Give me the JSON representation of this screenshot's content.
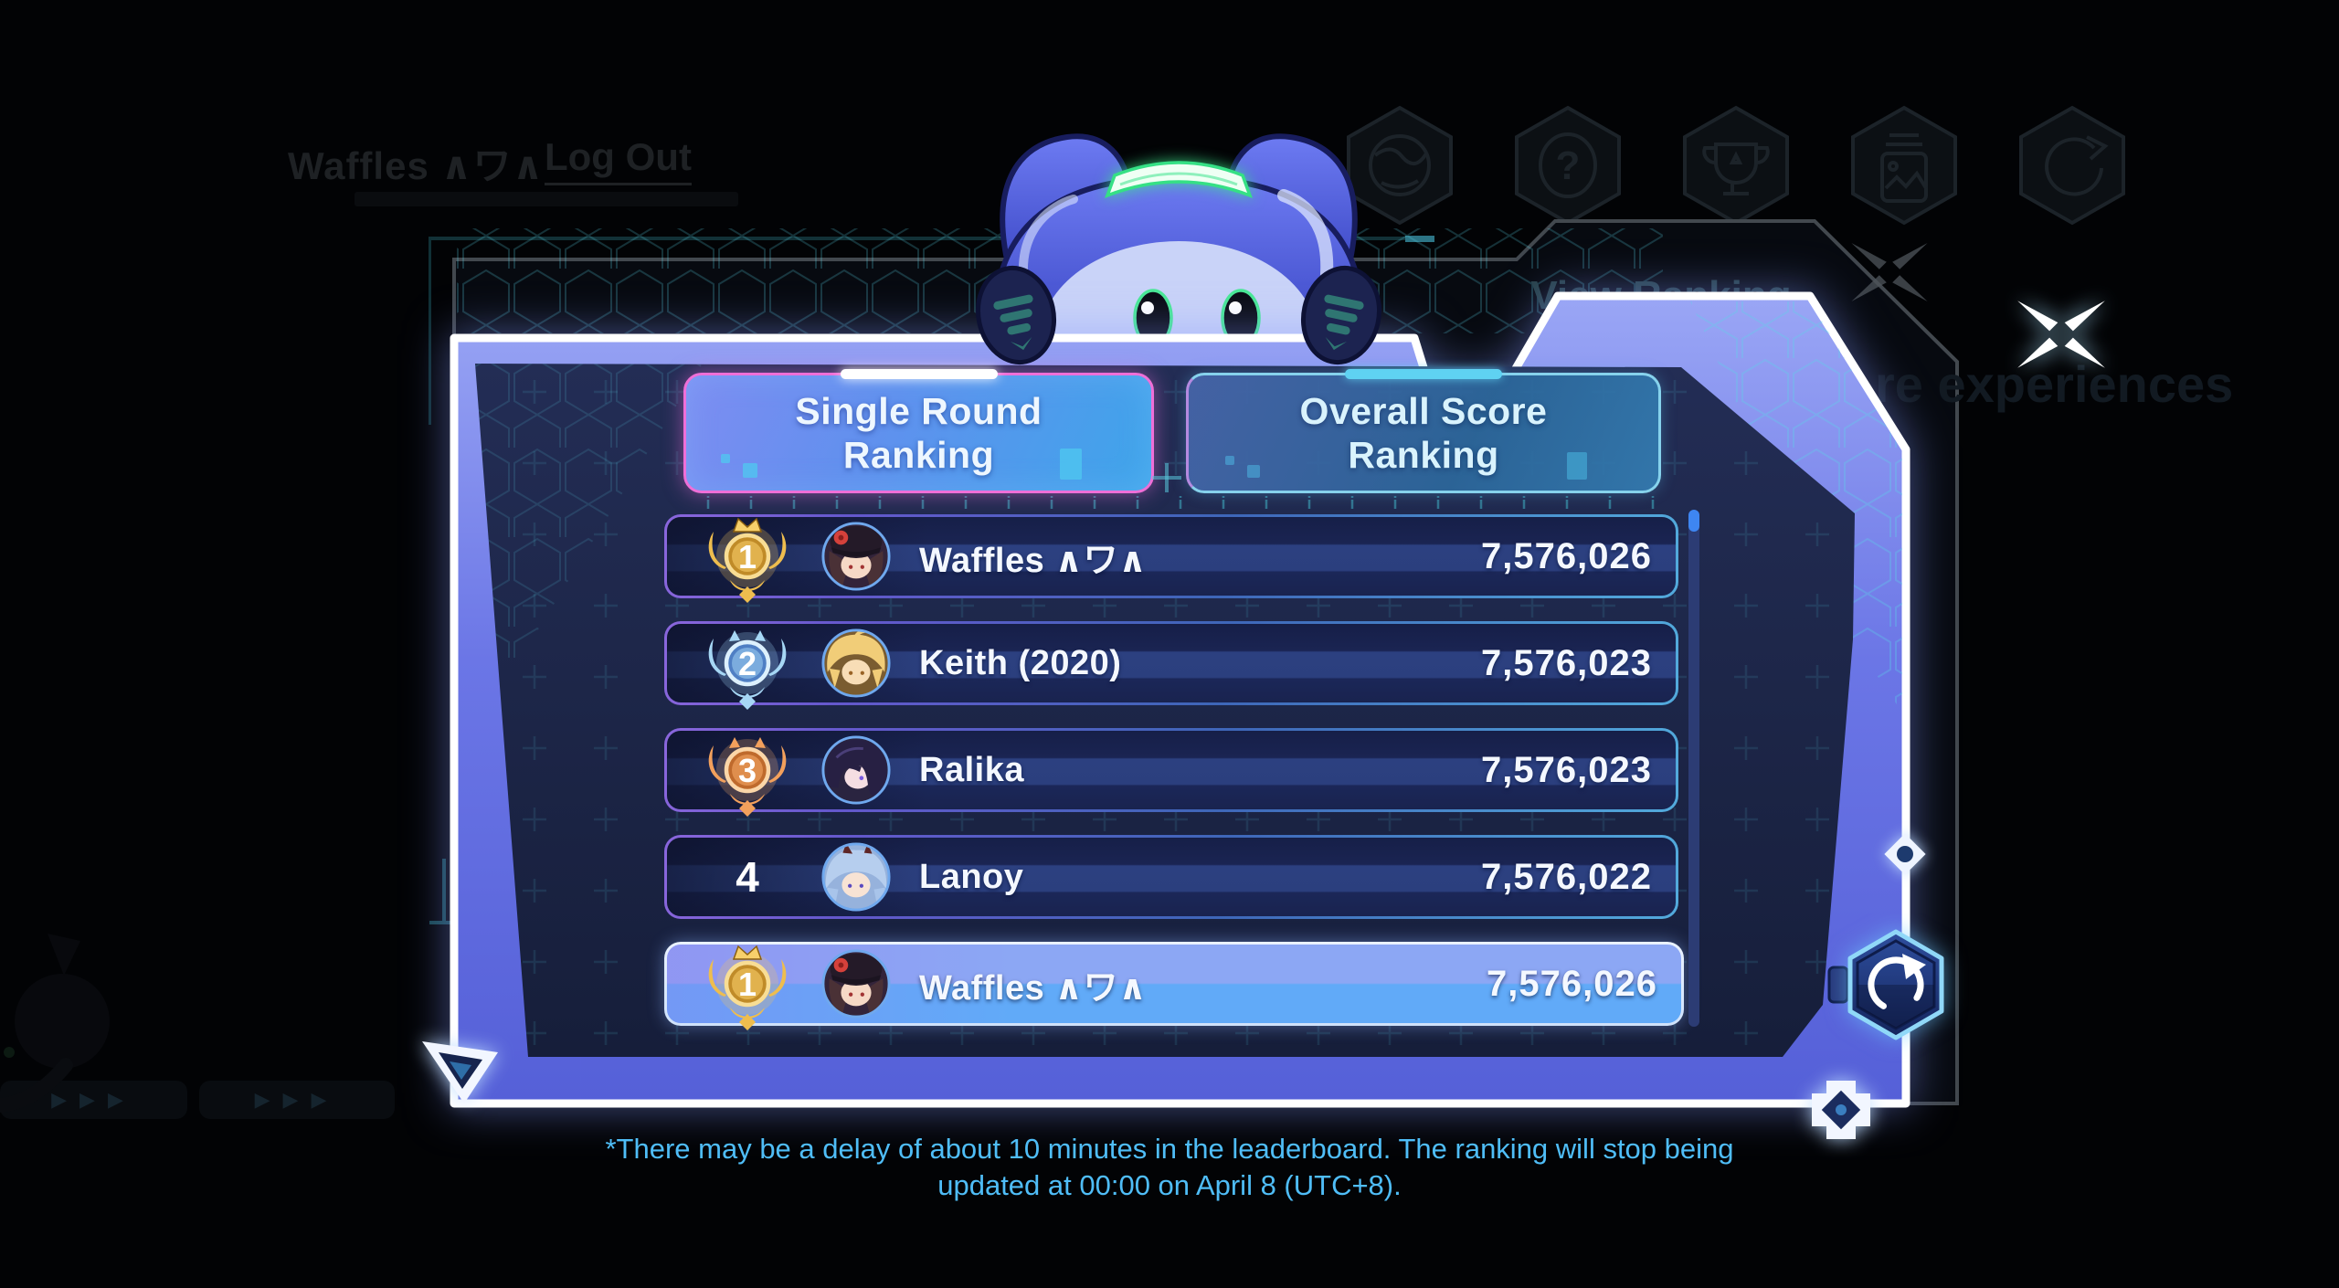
{
  "background": {
    "username": "Waffles ∧ワ∧",
    "logout_label": "Log Out",
    "view_ranking_label": "View Ranking",
    "experiences_text": "re experiences",
    "pager_arrows": "▶▶▶",
    "nav_icons": [
      "language-icon",
      "help-icon",
      "trophy-icon",
      "gallery-icon",
      "exit-icon"
    ]
  },
  "modal": {
    "tabs": [
      {
        "id": "single-round",
        "line1": "Single Round",
        "line2": "Ranking",
        "active": true
      },
      {
        "id": "overall-score",
        "line1": "Overall Score",
        "line2": "Ranking",
        "active": false
      }
    ],
    "rows": [
      {
        "rank": "1",
        "badge": "gold",
        "player": "Waffles ∧ワ∧",
        "score": "7,576,026",
        "avatar": "dark-hat-red-flower",
        "highlight": false
      },
      {
        "rank": "2",
        "badge": "silver",
        "player": "Keith (2020)",
        "score": "7,576,023",
        "avatar": "blond-hair",
        "highlight": false
      },
      {
        "rank": "3",
        "badge": "bronze",
        "player": "Ralika",
        "score": "7,576,023",
        "avatar": "dark-blue-hair",
        "highlight": false
      },
      {
        "rank": "4",
        "badge": "none",
        "player": "Lanoy",
        "score": "7,576,022",
        "avatar": "blue-hair-horns",
        "highlight": false
      },
      {
        "rank": "1",
        "badge": "gold",
        "player": "Waffles ∧ワ∧",
        "score": "7,576,026",
        "avatar": "dark-hat-red-flower",
        "highlight": true
      }
    ],
    "footnote_line1": "*There may be a delay of about 10 minutes in the leaderboard. The ranking will stop being",
    "footnote_line2": "updated at 00:00 on April 8 (UTC+8)."
  },
  "colors": {
    "accent-pink": "#ef6fd8",
    "accent-cyan": "#86d2ec",
    "footnote": "#4fbdf7",
    "band-top": "#9aa6f5",
    "band-bottom": "#5560d8",
    "panel-dark": "#1b2342",
    "hl-top": "#8ca7f4",
    "hl-bottom": "#61aaf8",
    "gold": "#f3c763",
    "silver": "#93c4ec",
    "bronze": "#f0a160",
    "score": "#f4f8ff"
  }
}
